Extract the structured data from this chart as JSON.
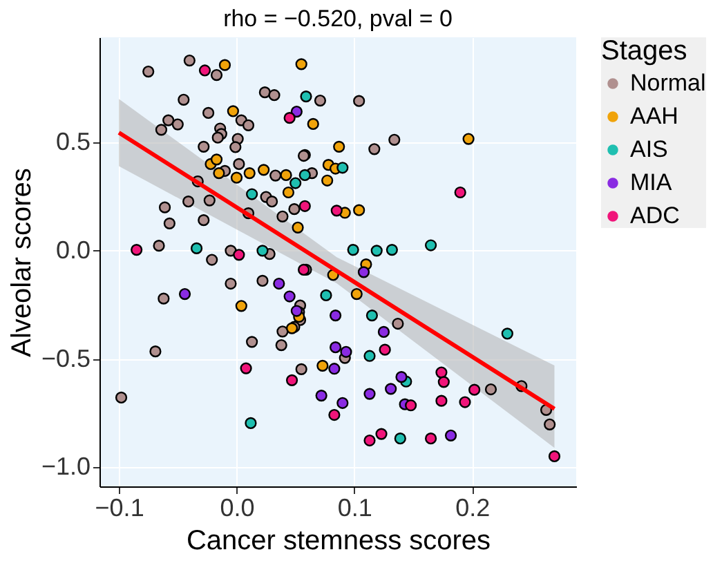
{
  "chart_data": {
    "type": "scatter",
    "title": "rho = −0.520, pval = 0",
    "xlabel": "Cancer stemness scores",
    "ylabel": "Alveolar scores",
    "legend_title": "Stages",
    "legend": "right",
    "grid": true,
    "marker": "circle",
    "xlim": [
      -0.1165,
      0.2885
    ],
    "ylim": [
      -1.088,
      0.985
    ],
    "xticks": [
      {
        "value": -0.1,
        "label": "−0.1"
      },
      {
        "value": 0,
        "label": "0.0"
      },
      {
        "value": 0.1,
        "label": "0.1"
      },
      {
        "value": 0.2,
        "label": "0.2"
      }
    ],
    "yticks": [
      {
        "value": -1,
        "label": "−1.0"
      },
      {
        "value": -0.5,
        "label": "−0.5"
      },
      {
        "value": 0,
        "label": "0.0"
      },
      {
        "value": 0.5,
        "label": "0.5"
      }
    ],
    "series": [
      {
        "name": "Normal",
        "color": "#b0908f",
        "x": [
          -0.04,
          -0.075,
          -0.017,
          -0.045,
          0.024,
          0.032,
          0.071,
          0.104,
          -0.024,
          -0.064,
          -0.058,
          -0.05,
          -0.014,
          -0.013,
          -0.016,
          0.004,
          0.01,
          0.001,
          -0.001,
          -0.028,
          0.058,
          0.057,
          0.117,
          0.134,
          -0.01,
          0.002,
          0.033,
          0.064,
          -0.033,
          -0.041,
          -0.023,
          0.025,
          0.03,
          -0.061,
          -0.057,
          -0.028,
          0.01,
          0.039,
          0.049,
          -0.066,
          -0.021,
          -0.005,
          0.028,
          -0.005,
          0.022,
          0.059,
          -0.062,
          0.054,
          0.053,
          0.054,
          0.049,
          0.039,
          0.038,
          0.013,
          -0.069,
          0.055,
          0.092,
          0.137,
          0.216,
          0.242,
          0.263,
          0.266,
          -0.098
        ],
        "values": [
          0.878,
          0.827,
          0.811,
          0.697,
          0.731,
          0.718,
          0.693,
          0.691,
          0.636,
          0.558,
          0.602,
          0.583,
          0.564,
          0.539,
          0.522,
          0.602,
          0.579,
          0.516,
          0.478,
          0.48,
          0.442,
          0.438,
          0.469,
          0.512,
          0.368,
          0.4,
          0.347,
          0.358,
          0.32,
          0.227,
          0.232,
          0.248,
          0.227,
          0.2,
          0.126,
          0.141,
          0.173,
          0.158,
          0.192,
          0.023,
          -0.042,
          0.0,
          -0.015,
          -0.152,
          -0.139,
          -0.088,
          -0.221,
          -0.253,
          -0.284,
          -0.32,
          -0.352,
          -0.373,
          -0.436,
          -0.421,
          -0.465,
          -0.547,
          -0.495,
          -0.337,
          -0.64,
          -0.625,
          -0.735,
          -0.802,
          -0.678
        ]
      },
      {
        "name": "AAH",
        "color": "#f0a30a",
        "x": [
          -0.01,
          0.055,
          -0.003,
          0.065,
          0.197,
          0.087,
          -0.022,
          -0.017,
          -0.015,
          0.0,
          0.011,
          0.023,
          0.042,
          0.044,
          0.078,
          0.084,
          0.077,
          0.092,
          0.104,
          0.052,
          0.11,
          0.082,
          0.102,
          0.004,
          0.053,
          0.047,
          0.073
        ],
        "values": [
          0.857,
          0.861,
          0.644,
          0.585,
          0.516,
          0.48,
          0.4,
          0.421,
          0.358,
          0.337,
          0.358,
          0.373,
          0.349,
          0.269,
          0.396,
          0.379,
          0.324,
          0.175,
          0.187,
          0.107,
          -0.063,
          -0.112,
          -0.2,
          -0.255,
          -0.305,
          -0.358,
          -0.531
        ]
      },
      {
        "name": "AIS",
        "color": "#1fbfb0",
        "x": [
          0.059,
          0.058,
          0.05,
          0.09,
          0.013,
          -0.034,
          0.022,
          0.099,
          0.119,
          0.132,
          0.165,
          0.076,
          0.115,
          0.113,
          0.23,
          0.144,
          0.139,
          0.012
        ],
        "values": [
          0.712,
          0.349,
          0.312,
          0.383,
          0.261,
          0.011,
          0.0,
          0.004,
          0.0,
          0.004,
          0.025,
          -0.206,
          -0.299,
          -0.486,
          -0.383,
          -0.604,
          -0.867,
          -0.796
        ]
      },
      {
        "name": "MIA",
        "color": "#8a2be2",
        "x": [
          0.051,
          0.036,
          0.045,
          0.051,
          0.084,
          0.125,
          -0.044,
          0.084,
          0.093,
          0.083,
          0.072,
          0.113,
          0.131,
          0.14,
          0.182,
          0.108,
          0.143,
          0.09
        ],
        "values": [
          0.642,
          -0.152,
          -0.211,
          -0.278,
          -0.299,
          -0.375,
          -0.2,
          -0.446,
          -0.467,
          -0.545,
          -0.669,
          -0.661,
          -0.638,
          -0.583,
          -0.853,
          -0.099,
          -0.709,
          -0.703
        ]
      },
      {
        "name": "ADC",
        "color": "#f0157a",
        "x": [
          -0.027,
          0.045,
          0.058,
          0.085,
          0.19,
          -0.085,
          0.002,
          0.008,
          0.047,
          0.083,
          0.113,
          0.123,
          0.165,
          0.126,
          0.148,
          0.174,
          0.176,
          0.174,
          0.194,
          0.202,
          0.27,
          0.057
        ],
        "values": [
          0.832,
          0.613,
          0.206,
          0.185,
          0.269,
          0.004,
          -0.019,
          -0.543,
          -0.598,
          -0.758,
          -0.876,
          -0.846,
          -0.867,
          -0.457,
          -0.714,
          -0.562,
          -0.606,
          -0.693,
          -0.699,
          -0.642,
          -0.949,
          -0.088
        ]
      },
      {
        "type": "line",
        "color": "#ff0000",
        "marker": "none",
        "line_style": "solid",
        "x": [
          -0.1,
          0.085,
          0.27
        ],
        "values": [
          0.545,
          -0.093,
          -0.73
        ],
        "lower": [
          0.39,
          -0.15,
          -0.91
        ],
        "upper": [
          0.7,
          -0.03,
          -0.53
        ]
      }
    ]
  }
}
